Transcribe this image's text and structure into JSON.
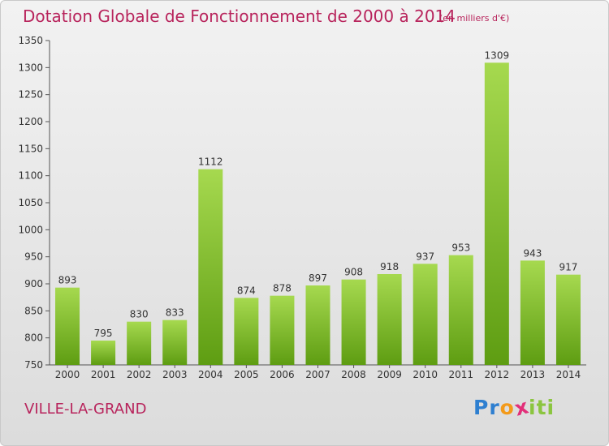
{
  "title": "Dotation Globale de Fonctionnement de 2000 à 2014",
  "subtitle": "(en milliers d'€)",
  "commune": "VILLE-LA-GRAND",
  "logo": {
    "text": "Proxiti",
    "letters": [
      "P",
      "r",
      "o",
      "x",
      "i",
      "t",
      "i"
    ],
    "colors": [
      "#2e7fd0",
      "#2e7fd0",
      "#f39a1a",
      "#e2307a",
      "#8bc53f",
      "#8bc53f",
      "#8bc53f"
    ]
  },
  "colors": {
    "bar_light": "#a6d94f",
    "bar_dark": "#5e9d12",
    "title": "#b8245c",
    "text": "#333333"
  },
  "chart_data": {
    "type": "bar",
    "categories": [
      "2000",
      "2001",
      "2002",
      "2003",
      "2004",
      "2005",
      "2006",
      "2007",
      "2008",
      "2009",
      "2010",
      "2011",
      "2012",
      "2013",
      "2014"
    ],
    "values": [
      893,
      795,
      830,
      833,
      1112,
      874,
      878,
      897,
      908,
      918,
      937,
      953,
      1309,
      943,
      917
    ],
    "ylim": [
      750,
      1350
    ],
    "yticks": [
      750,
      800,
      850,
      900,
      950,
      1000,
      1050,
      1100,
      1150,
      1200,
      1250,
      1300,
      1350
    ],
    "grid": false,
    "data_labels": true
  }
}
